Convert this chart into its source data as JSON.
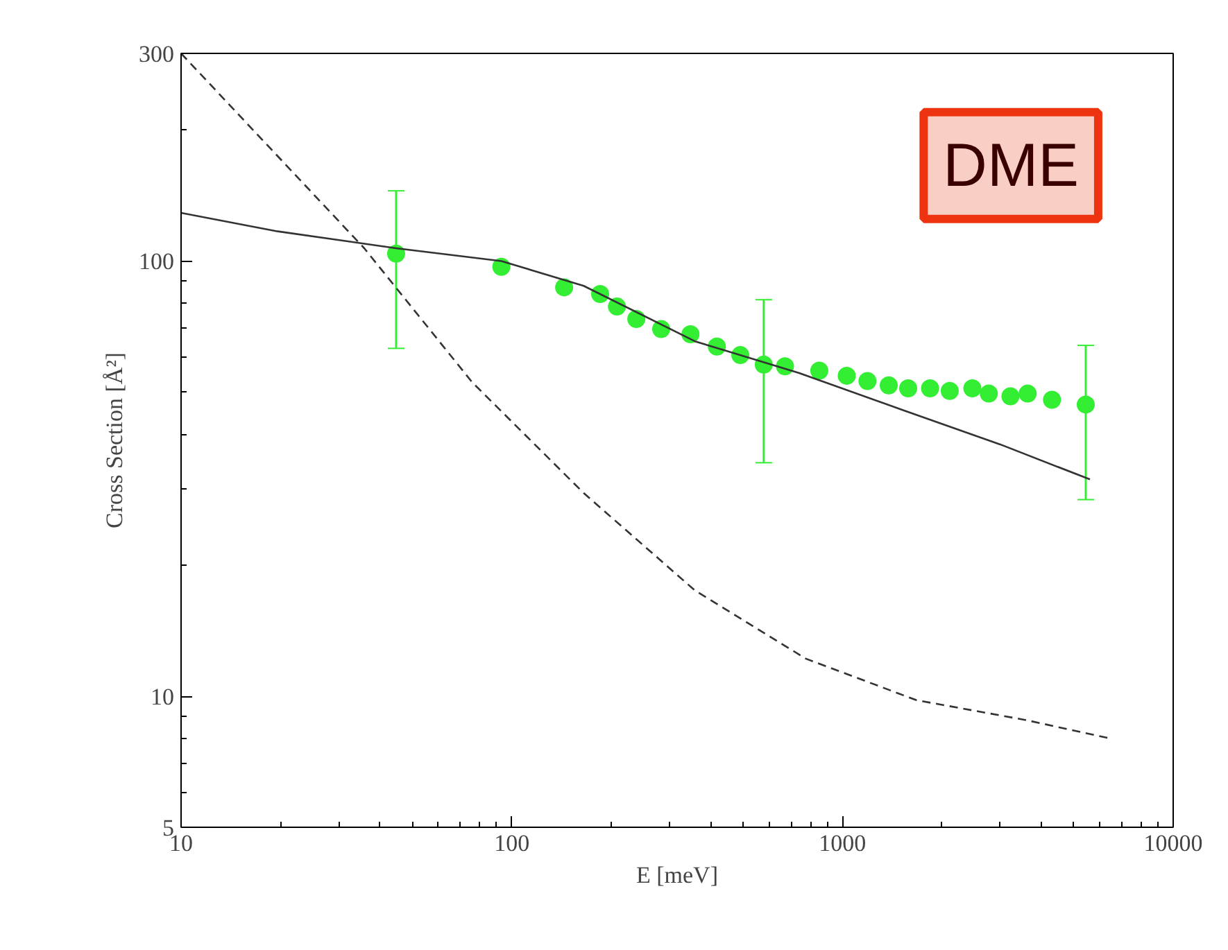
{
  "chart_data": {
    "type": "scatter",
    "xlabel": "E [meV]",
    "ylabel": "Cross Section [Å²]",
    "log": "xy",
    "xlim": [
      10,
      10000
    ],
    "ylim": [
      5,
      300
    ],
    "xticks": [
      10,
      100,
      1000,
      10000
    ],
    "yticks": [
      5,
      10,
      100,
      300
    ],
    "grid": false,
    "annotations": [
      "DME"
    ],
    "series": [
      {
        "color": "#33ee33",
        "marker": "circle",
        "x": [
          44.7,
          93,
          144,
          185,
          208,
          238,
          283,
          347,
          417,
          491,
          578,
          670,
          851,
          1030,
          1190,
          1380,
          1580,
          1840,
          2110,
          2470,
          2770,
          3220,
          3630,
          4300,
          5440
        ],
        "values": [
          104,
          97,
          87,
          84,
          78.6,
          73.6,
          69.8,
          67.9,
          63.6,
          60.8,
          57.8,
          57.3,
          56,
          54.5,
          53,
          51.8,
          51,
          51,
          50.3,
          51,
          49.6,
          48.9,
          49.6,
          48,
          46.8
        ],
        "errors": [
          [
            63,
            145
          ],
          null,
          null,
          null,
          null,
          null,
          null,
          null,
          null,
          null,
          [
            34.4,
            81.5
          ],
          null,
          null,
          null,
          null,
          null,
          null,
          null,
          null,
          null,
          null,
          null,
          null,
          null,
          [
            28.3,
            64
          ]
        ]
      },
      {
        "type": "line",
        "color": "#333333",
        "line_style": "solid",
        "x": [
          10,
          19.6,
          44.7,
          93,
          165,
          358,
          740,
          1530,
          3000,
          5600
        ],
        "values": [
          129,
          117,
          107,
          100,
          87.7,
          65.4,
          55.3,
          45.4,
          37.9,
          31.5
        ]
      },
      {
        "type": "line",
        "color": "#333333",
        "line_style": "dashed",
        "x": [
          10,
          35.8,
          76,
          165,
          358,
          775,
          1670,
          3630,
          6440
        ],
        "values": [
          300,
          107,
          52.6,
          29.3,
          17.5,
          12.2,
          9.8,
          8.8,
          8.0
        ]
      }
    ]
  }
}
